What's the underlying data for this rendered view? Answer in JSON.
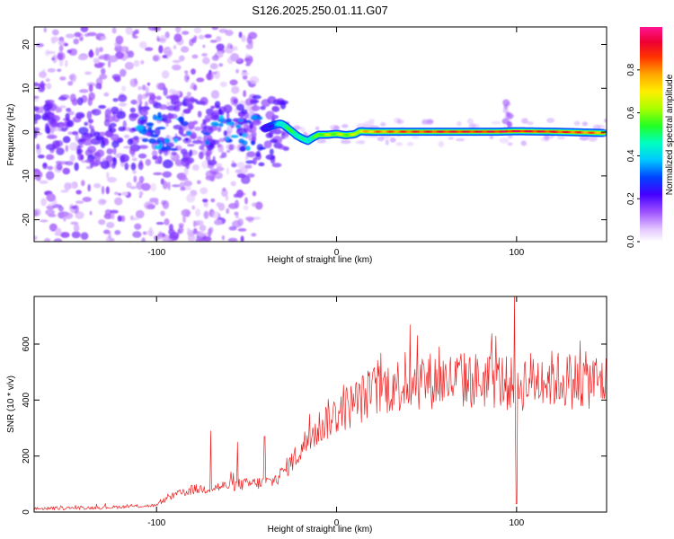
{
  "title": "S126.2025.250.01.11.G07",
  "colors": {
    "snr_line": "#ee2222",
    "axis": "#000000",
    "background": "#ffffff"
  },
  "chart_data": [
    {
      "type": "heatmap",
      "title": "",
      "xlabel": "Height of straight line (km)",
      "ylabel": "Frequency (Hz)",
      "xlim": [
        -168,
        150
      ],
      "ylim": [
        -25,
        24
      ],
      "x_ticks": [
        -100,
        0,
        100
      ],
      "x_tick_labels": [
        "-100",
        "0",
        "100"
      ],
      "y_ticks": [
        -20,
        -10,
        0,
        10,
        20
      ],
      "y_tick_labels": [
        "-20",
        "-10",
        "0",
        "10",
        "20"
      ],
      "ridge": {
        "description": "dominant spectral peak frequency vs height",
        "x": [
          -40,
          -35,
          -31,
          -28,
          -25,
          -22,
          -19,
          -16,
          -13,
          -10,
          -5,
          0,
          5,
          10,
          13,
          20,
          40,
          60,
          90,
          100,
          120,
          148
        ],
        "y": [
          0.8,
          1.6,
          2.0,
          1.2,
          0.2,
          -0.8,
          -1.5,
          -2.0,
          -1.2,
          -0.6,
          -0.6,
          -0.4,
          -0.7,
          -0.5,
          0.2,
          0.1,
          0.1,
          0.1,
          0.1,
          0.2,
          0.1,
          -0.2
        ],
        "amplitude": [
          0.22,
          0.3,
          0.45,
          0.5,
          0.5,
          0.48,
          0.45,
          0.46,
          0.5,
          0.58,
          0.6,
          0.6,
          0.6,
          0.62,
          0.7,
          0.78,
          0.85,
          0.88,
          0.9,
          0.9,
          0.88,
          0.78
        ]
      },
      "colorbar": {
        "label": "Normalized spectral amplitude",
        "range": [
          0,
          1
        ],
        "ticks": [
          0.0,
          0.2,
          0.4,
          0.6,
          0.8
        ],
        "tick_labels": [
          "0.0",
          "0.2",
          "0.4",
          "0.6",
          "0.8"
        ]
      }
    },
    {
      "type": "line",
      "title": "",
      "xlabel": "Height of straight line (km)",
      "ylabel": "SNR (10 * v/v)",
      "xlim": [
        -168,
        150
      ],
      "ylim": [
        0,
        770
      ],
      "x_ticks": [
        -100,
        0,
        100
      ],
      "x_tick_labels": [
        "-100",
        "0",
        "100"
      ],
      "y_ticks": [
        0,
        200,
        400,
        600
      ],
      "y_tick_labels": [
        "0",
        "200",
        "400",
        "600"
      ],
      "series": [
        {
          "name": "SNR",
          "x": [
            -168,
            -150,
            -130,
            -115,
            -105,
            -100,
            -95,
            -90,
            -80,
            -70,
            -60,
            -50,
            -40,
            -35,
            -30,
            -25,
            -20,
            -15,
            -10,
            -5,
            0,
            5,
            10,
            15,
            20,
            25,
            30,
            40,
            50,
            60,
            70,
            80,
            90,
            95,
            98,
            100,
            102,
            105,
            110,
            120,
            130,
            140,
            150
          ],
          "y": [
            12,
            14,
            16,
            20,
            22,
            24,
            45,
            60,
            80,
            85,
            95,
            100,
            105,
            110,
            140,
            180,
            220,
            270,
            300,
            330,
            350,
            370,
            390,
            410,
            430,
            440,
            450,
            460,
            470,
            470,
            470,
            470,
            470,
            460,
            450,
            440,
            450,
            470,
            475,
            475,
            470,
            470,
            465
          ],
          "spikes": [
            {
              "x": -70,
              "y": 290
            },
            {
              "x": -55,
              "y": 250
            },
            {
              "x": -40,
              "y": 270
            },
            {
              "x": 38,
              "y": 570
            },
            {
              "x": 45,
              "y": 630
            },
            {
              "x": 57,
              "y": 590
            },
            {
              "x": 99,
              "y": 770
            },
            {
              "x": 100,
              "y": 30
            }
          ]
        }
      ]
    }
  ]
}
